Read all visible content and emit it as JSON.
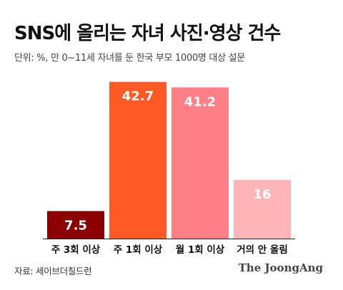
{
  "header": {
    "title": "SNS에 올리는 자녀 사진·영상 건수",
    "subtitle": "단위: %, 만 0~11세 자녀를 둔 한국 부모 1000명 대상 설문"
  },
  "footer": {
    "source": "자료: 세이브더칠드런",
    "brand": "The JoongAng"
  },
  "chart_data": {
    "type": "bar",
    "categories": [
      "주 3회 이상",
      "주 1회 이상",
      "월 1회 이상",
      "거의 안 올림"
    ],
    "values": [
      7.5,
      42.7,
      41.2,
      16
    ],
    "value_labels": [
      "7.5",
      "42.7",
      "41.2",
      "16"
    ],
    "colors": [
      "#8b0000",
      "#ff5a26",
      "#ff7f87",
      "#ffb5b8"
    ],
    "ylim": [
      0,
      44
    ],
    "grid": false,
    "legend": "none"
  }
}
